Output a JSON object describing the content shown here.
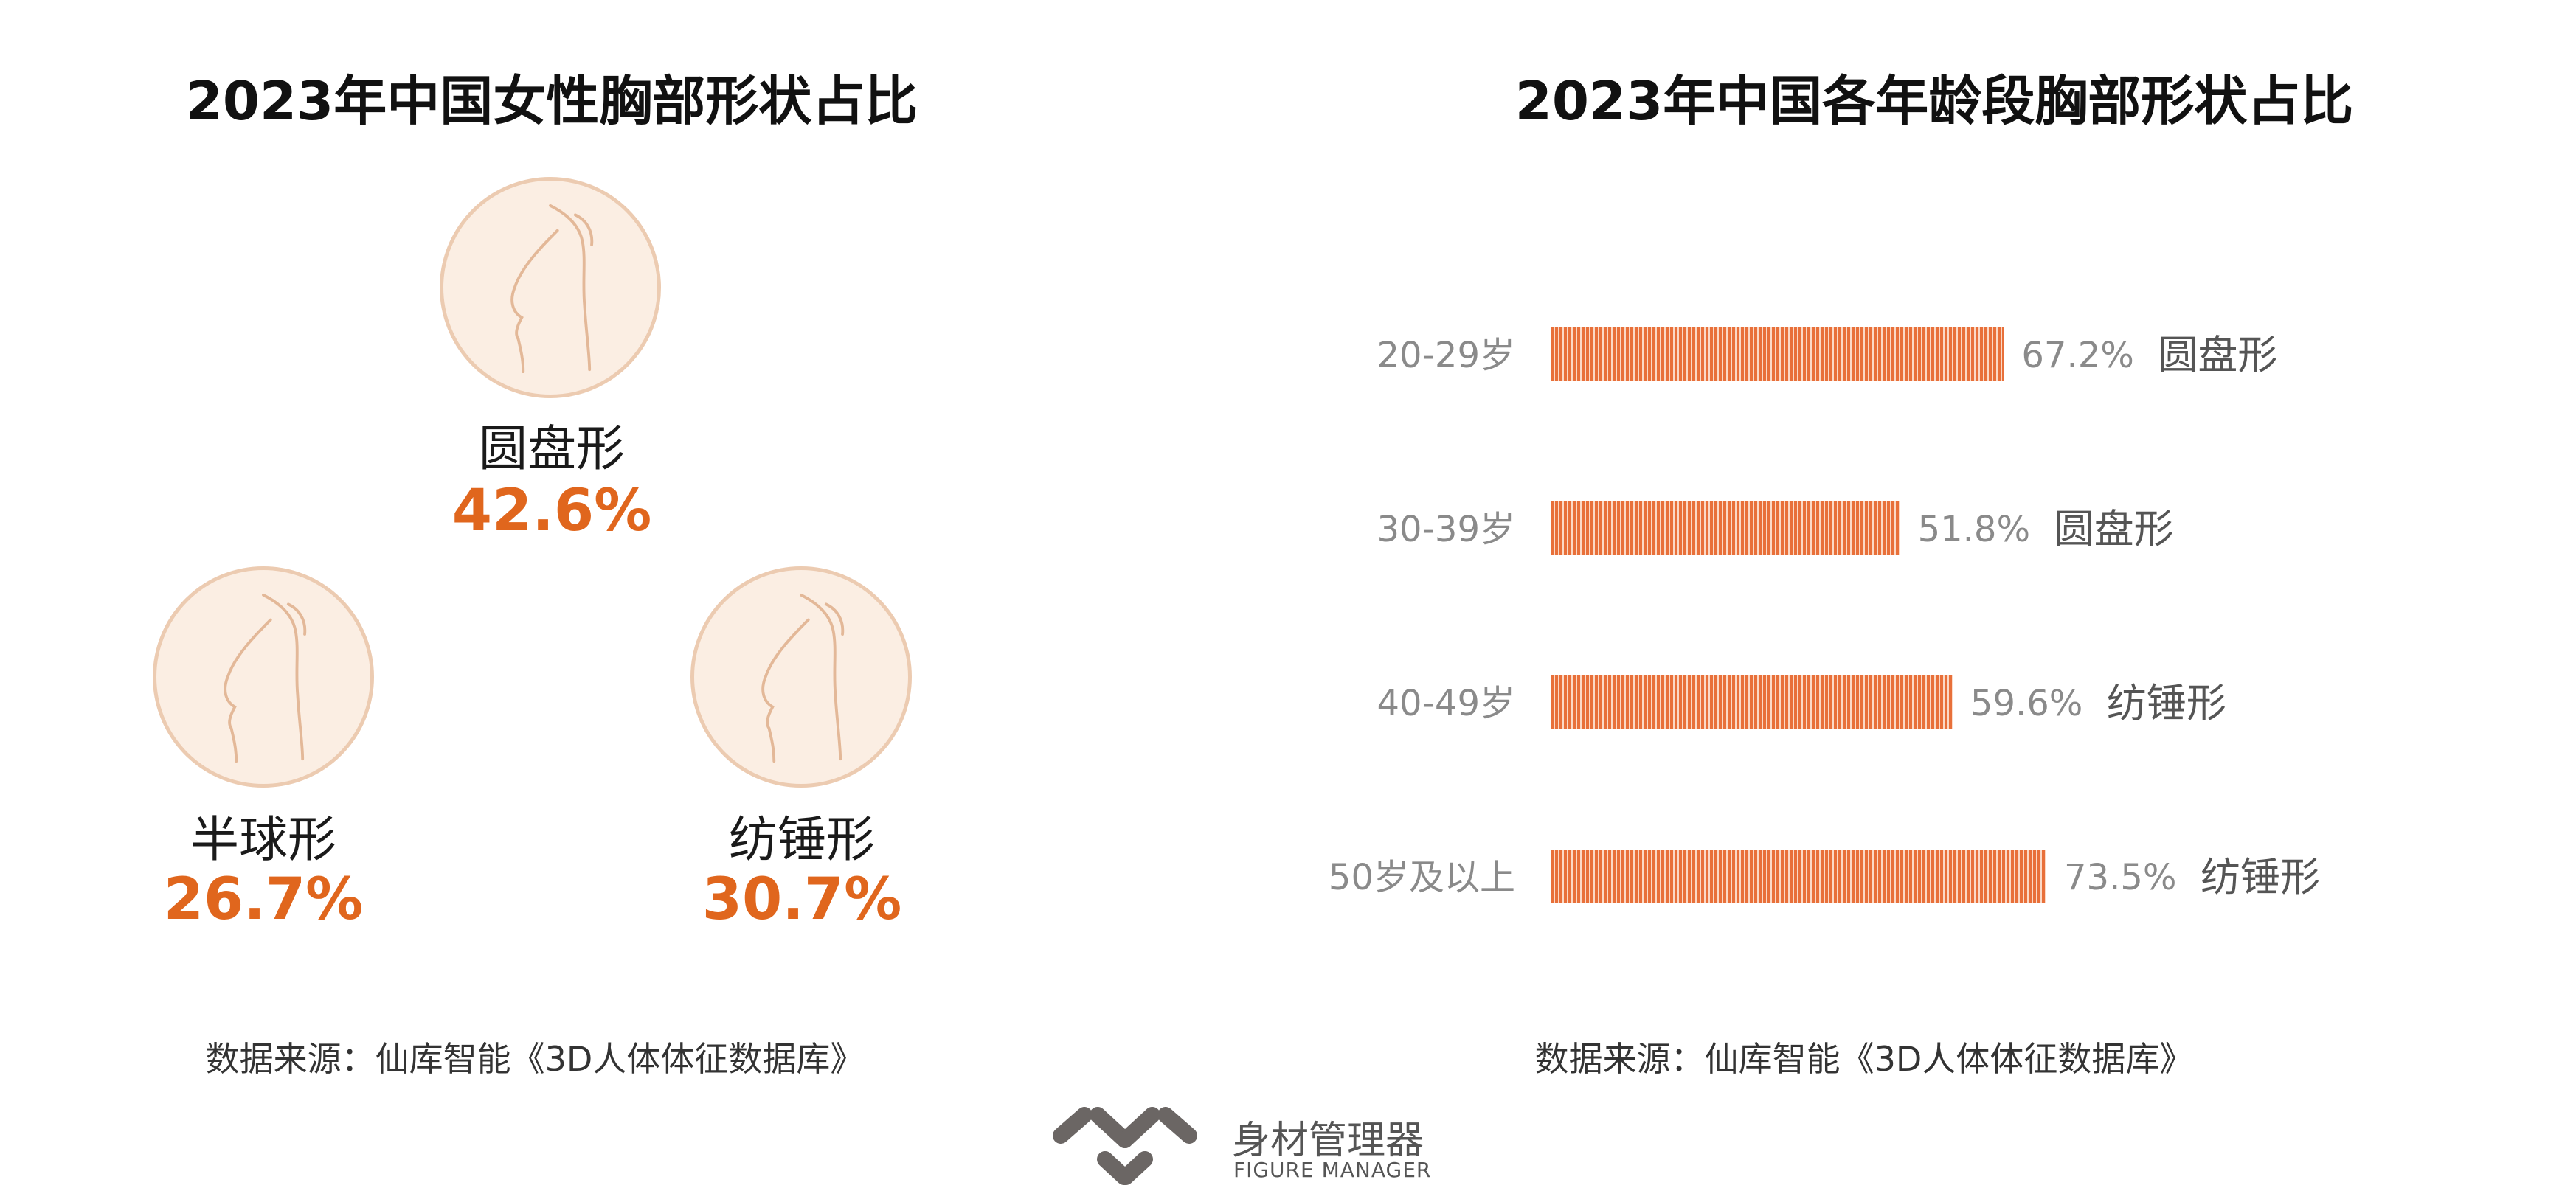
{
  "left_panel": {
    "title": "2023年中国女性胸部形状占比",
    "shapes": [
      {
        "name": "圆盘形",
        "percent_label": "42.6%",
        "icon": "breast-profile-icon"
      },
      {
        "name": "半球形",
        "percent_label": "26.7%",
        "icon": "breast-profile-icon"
      },
      {
        "name": "纺锤形",
        "percent_label": "30.7%",
        "icon": "breast-profile-icon"
      }
    ],
    "source": "数据来源：仙库智能《3D人体体征数据库》"
  },
  "right_panel": {
    "title": "2023年中国各年龄段胸部形状占比",
    "source": "数据来源：仙库智能《3D人体体征数据库》"
  },
  "colors": {
    "accent": "#e0661d",
    "bar": "#e8703a",
    "circle_fill": "#fbeee3",
    "circle_stroke": "#eccbb1",
    "muted_text": "#8a8a8a"
  },
  "chart_data": [
    {
      "type": "pie",
      "title": "2023年中国女性胸部形状占比",
      "categories": [
        "圆盘形",
        "半球形",
        "纺锤形"
      ],
      "values": [
        42.6,
        26.7,
        30.7
      ],
      "unit": "%"
    },
    {
      "type": "bar",
      "orientation": "horizontal",
      "title": "2023年中国各年龄段胸部形状占比",
      "categories": [
        "20-29岁",
        "30-39岁",
        "40-49岁",
        "50岁及以上"
      ],
      "values": [
        67.2,
        51.8,
        59.6,
        73.5
      ],
      "value_labels": [
        "67.2%",
        "51.8%",
        "59.6%",
        "73.5%"
      ],
      "shape_labels": [
        "圆盘形",
        "圆盘形",
        "纺锤形",
        "纺锤形"
      ],
      "unit": "%",
      "xlim": [
        0,
        73.5
      ],
      "grid": false
    }
  ],
  "brand": {
    "name": "身材管理器",
    "subtitle": "FIGURE MANAGER",
    "icon": "figure-manager-logo"
  }
}
